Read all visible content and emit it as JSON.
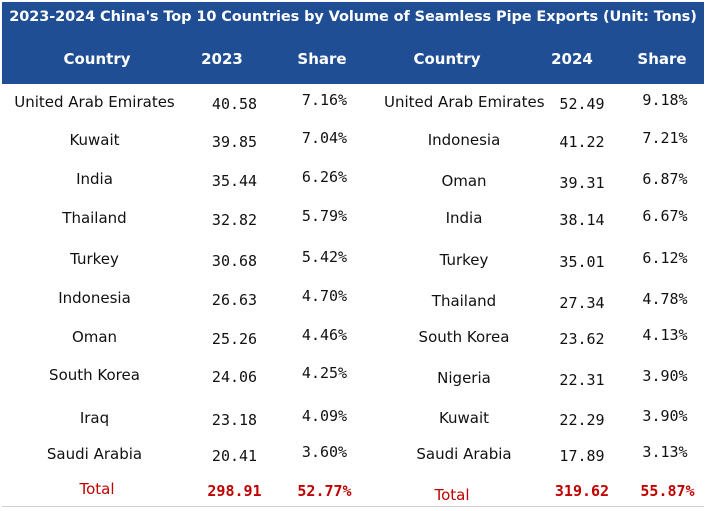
{
  "title": "2023-2024 China's Top 10 Countries by Volume of Seamless Pipe Exports (Unit: Tons)",
  "headers": {
    "country_2023": "Country",
    "year_2023": "2023",
    "share_2023": "Share",
    "country_2024": "Country",
    "year_2024": "2024",
    "share_2024": "Share"
  },
  "rows_2023": [
    {
      "country": "United Arab Emirates",
      "value": "40.58",
      "share": "7.16%"
    },
    {
      "country": "Kuwait",
      "value": "39.85",
      "share": "7.04%"
    },
    {
      "country": "India",
      "value": "35.44",
      "share": "6.26%"
    },
    {
      "country": "Thailand",
      "value": "32.82",
      "share": "5.79%"
    },
    {
      "country": "Turkey",
      "value": "30.68",
      "share": "5.42%"
    },
    {
      "country": "Indonesia",
      "value": "26.63",
      "share": "4.70%"
    },
    {
      "country": "Oman",
      "value": "25.26",
      "share": "4.46%"
    },
    {
      "country": "South Korea",
      "value": "24.06",
      "share": "4.25%"
    },
    {
      "country": "Iraq",
      "value": "23.18",
      "share": "4.09%"
    },
    {
      "country": "Saudi Arabia",
      "value": "20.41",
      "share": "3.60%"
    }
  ],
  "rows_2024": [
    {
      "country": "United Arab Emirates",
      "value": "52.49",
      "share": "9.18%"
    },
    {
      "country": "Indonesia",
      "value": "41.22",
      "share": "7.21%"
    },
    {
      "country": "Oman",
      "value": "39.31",
      "share": "6.87%"
    },
    {
      "country": "India",
      "value": "38.14",
      "share": "6.67%"
    },
    {
      "country": "Turkey",
      "value": "35.01",
      "share": "6.12%"
    },
    {
      "country": "Thailand",
      "value": "27.34",
      "share": "4.78%"
    },
    {
      "country": "South Korea",
      "value": "23.62",
      "share": "4.13%"
    },
    {
      "country": "Nigeria",
      "value": "22.31",
      "share": "3.90%"
    },
    {
      "country": "Kuwait",
      "value": "22.29",
      "share": "3.90%"
    },
    {
      "country": "Saudi Arabia",
      "value": "17.89",
      "share": "3.13%"
    }
  ],
  "total_2023": {
    "label": "Total",
    "value": "298.91",
    "share": "52.77%"
  },
  "total_2024": {
    "label": "Total",
    "value": "319.62",
    "share": "55.87%"
  },
  "colors": {
    "header_bg": "#1f4e94",
    "header_text": "#ffffff",
    "total_text": "#c00000",
    "body_text": "#111111"
  }
}
